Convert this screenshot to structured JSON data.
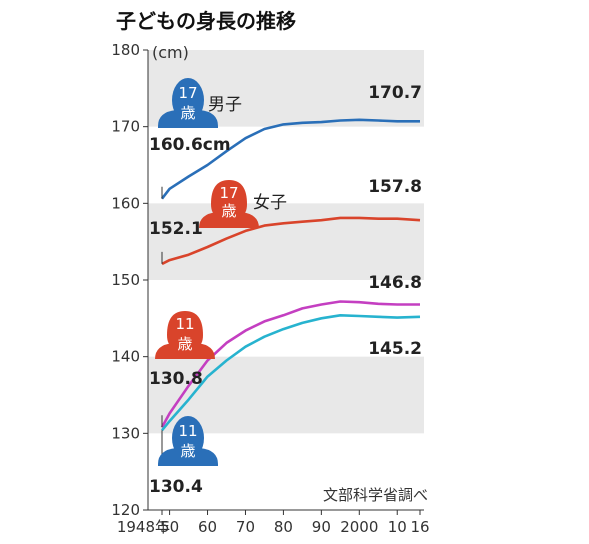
{
  "chart_data": {
    "type": "line",
    "title": "子どもの身長の推移",
    "ylabel": "(cm)",
    "source": "文部科学省調べ",
    "ylim": [
      120,
      180
    ],
    "xlim": [
      1948,
      2016
    ],
    "yticks": [
      120,
      130,
      140,
      150,
      160,
      170,
      180
    ],
    "xticks": [
      {
        "value": 1948,
        "label": "1948年"
      },
      {
        "value": 1950,
        "label": "50"
      },
      {
        "value": 1960,
        "label": "60"
      },
      {
        "value": 1970,
        "label": "70"
      },
      {
        "value": 1980,
        "label": "80"
      },
      {
        "value": 1990,
        "label": "90"
      },
      {
        "value": 2000,
        "label": "2000"
      },
      {
        "value": 2010,
        "label": "10"
      },
      {
        "value": 2016,
        "label": "16"
      }
    ],
    "bands": [
      [
        170,
        180
      ],
      [
        150,
        160
      ],
      [
        130,
        140
      ]
    ],
    "series": [
      {
        "name": "男子",
        "age": "17",
        "age_unit": "歳",
        "color": "#2a6fb8",
        "x": [
          1948,
          1950,
          1955,
          1960,
          1965,
          1970,
          1975,
          1980,
          1985,
          1990,
          1995,
          2000,
          2005,
          2010,
          2016
        ],
        "values": [
          160.6,
          161.9,
          163.5,
          165.0,
          166.8,
          168.5,
          169.7,
          170.3,
          170.5,
          170.6,
          170.8,
          170.9,
          170.8,
          170.7,
          170.7
        ],
        "start_label": "160.6cm",
        "end_label": "170.7"
      },
      {
        "name": "女子",
        "age": "17",
        "age_unit": "歳",
        "color": "#d9442b",
        "x": [
          1948,
          1950,
          1955,
          1960,
          1965,
          1970,
          1975,
          1980,
          1985,
          1990,
          1995,
          2000,
          2005,
          2010,
          2016
        ],
        "values": [
          152.1,
          152.6,
          153.3,
          154.3,
          155.4,
          156.4,
          157.1,
          157.4,
          157.6,
          157.8,
          158.1,
          158.1,
          158.0,
          158.0,
          157.8
        ],
        "start_label": "152.1",
        "end_label": "157.8"
      },
      {
        "name": "",
        "age": "11",
        "age_unit": "歳",
        "color": "#c43fc1",
        "x": [
          1948,
          1950,
          1955,
          1960,
          1965,
          1970,
          1975,
          1980,
          1985,
          1990,
          1995,
          2000,
          2005,
          2010,
          2016
        ],
        "values": [
          130.8,
          132.6,
          136.2,
          139.5,
          141.8,
          143.4,
          144.6,
          145.4,
          146.3,
          146.8,
          147.2,
          147.1,
          146.9,
          146.8,
          146.8
        ],
        "start_label": "130.8",
        "end_label": "146.8"
      },
      {
        "name": "",
        "age": "11",
        "age_unit": "歳",
        "color": "#27b3cf",
        "x": [
          1948,
          1950,
          1955,
          1960,
          1965,
          1970,
          1975,
          1980,
          1985,
          1990,
          1995,
          2000,
          2005,
          2010,
          2016
        ],
        "values": [
          130.4,
          131.6,
          134.4,
          137.4,
          139.5,
          141.3,
          142.6,
          143.6,
          144.4,
          145.0,
          145.4,
          145.3,
          145.2,
          145.1,
          145.2
        ],
        "start_label": "130.4",
        "end_label": "145.2"
      }
    ]
  }
}
